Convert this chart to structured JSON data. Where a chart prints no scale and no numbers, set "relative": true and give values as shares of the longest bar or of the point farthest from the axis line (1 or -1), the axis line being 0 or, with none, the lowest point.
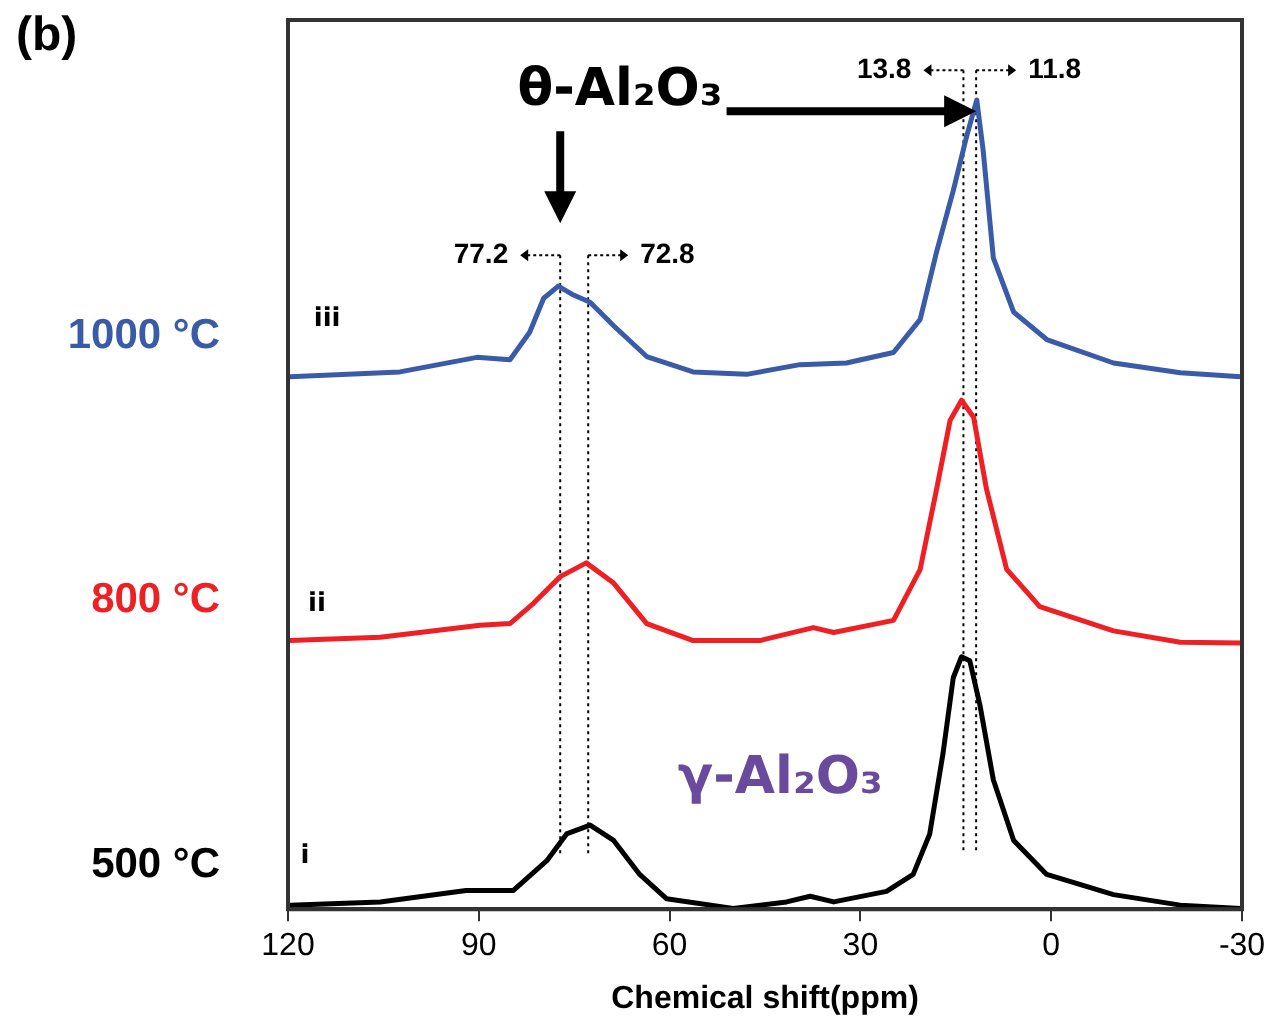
{
  "chart_data": {
    "type": "line",
    "relative": true,
    "xlabel": "Chemical shift(ppm)",
    "xlim": [
      120,
      -30
    ],
    "xticks": [
      120,
      90,
      60,
      30,
      0,
      -30
    ],
    "legend": false,
    "series": [
      {
        "name": "1000 °C",
        "color": "#3a5ba8",
        "x": [
          119.7,
          102.4,
          90.3,
          85.1,
          82,
          79.8,
          77.5,
          75.1,
          72.5,
          68.8,
          63.6,
          56.3,
          47.9,
          39.5,
          32.2,
          24.8,
          20.6,
          18,
          15.4,
          13.3,
          11.7,
          10.7,
          9.1,
          5.9,
          0.7,
          -9.8,
          -20.3,
          -29.8
        ],
        "values": [
          0.658,
          0.664,
          0.682,
          0.679,
          0.713,
          0.755,
          0.77,
          0.759,
          0.75,
          0.721,
          0.683,
          0.664,
          0.661,
          0.673,
          0.675,
          0.688,
          0.729,
          0.813,
          0.888,
          0.955,
          1,
          0.938,
          0.805,
          0.738,
          0.704,
          0.675,
          0.663,
          0.658
        ]
      },
      {
        "name": "800 °C",
        "color": "#ee2024",
        "x": [
          119.7,
          105.5,
          89.8,
          85.1,
          81.4,
          77.2,
          73.1,
          68.8,
          63.6,
          56.3,
          45.8,
          37.4,
          34.2,
          24.8,
          20.6,
          18,
          15.9,
          14.1,
          12.2,
          10.2,
          7.0,
          1.8,
          -9.8,
          -20.3,
          -29.8
        ],
        "values": [
          0.332,
          0.336,
          0.351,
          0.353,
          0.378,
          0.411,
          0.428,
          0.403,
          0.353,
          0.332,
          0.332,
          0.348,
          0.342,
          0.357,
          0.42,
          0.52,
          0.604,
          0.629,
          0.608,
          0.52,
          0.42,
          0.374,
          0.344,
          0.33,
          0.329
        ]
      },
      {
        "name": "500 °C",
        "color": "#000000",
        "x": [
          119.7,
          105.5,
          92,
          84.6,
          79.3,
          76.2,
          72.5,
          68.8,
          64.7,
          60.5,
          50,
          41.6,
          37.9,
          34.2,
          25.9,
          21.7,
          19.1,
          17,
          15.4,
          14.1,
          12.8,
          11.2,
          9.1,
          5.9,
          0.7,
          -9.8,
          -20.3,
          -29.8
        ],
        "values": [
          0.005,
          0.009,
          0.023,
          0.023,
          0.06,
          0.093,
          0.104,
          0.085,
          0.043,
          0.013,
          0.001,
          0.009,
          0.016,
          0.009,
          0.022,
          0.043,
          0.093,
          0.193,
          0.286,
          0.312,
          0.307,
          0.252,
          0.16,
          0.085,
          0.043,
          0.018,
          0.005,
          0.001
        ]
      }
    ],
    "ref_lines": [
      {
        "axis": "x",
        "value": 77.2,
        "label": "77.2",
        "line_style": "dotted"
      },
      {
        "axis": "x",
        "value": 72.8,
        "label": "72.8",
        "line_style": "dotted"
      },
      {
        "axis": "x",
        "value": 13.8,
        "label": "13.8",
        "line_style": "dotted"
      },
      {
        "axis": "x",
        "value": 11.8,
        "label": "11.8",
        "line_style": "dotted"
      }
    ],
    "annotations": [
      "(b)",
      "θ-Al₂O₃",
      "γ-Al₂O₃",
      "i",
      "ii",
      "iii"
    ]
  }
}
